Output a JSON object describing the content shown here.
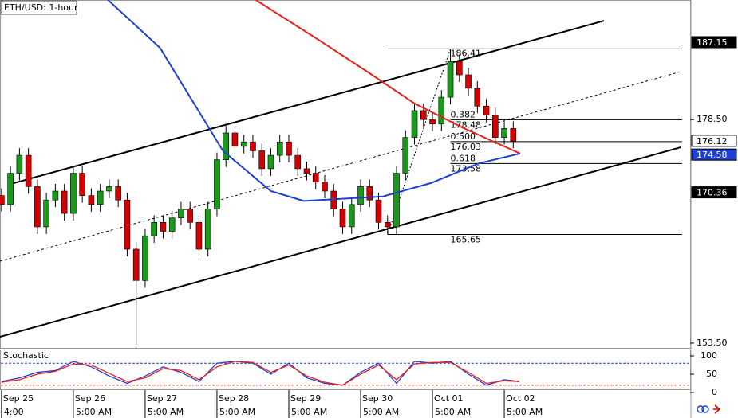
{
  "chart_data": {
    "type": "candlestick",
    "title": "ETH/USD: 1-hour",
    "xlim": [
      -0.5,
      230.1
    ],
    "ylim": [
      152.87,
      191.87
    ],
    "yticks": [
      {
        "value": 153.5,
        "label": "153.50"
      },
      {
        "value": 178.5,
        "label": "178.50"
      }
    ],
    "price_markers": [
      {
        "value": 187.15,
        "color": "#000000"
      },
      {
        "value": 176.12,
        "color": "#ffffff"
      },
      {
        "value": 174.58,
        "color": "#1f3fd0"
      },
      {
        "value": 170.36,
        "color": "#000000"
      }
    ],
    "xticks": [
      {
        "value": 0,
        "label": "Sep 25"
      },
      {
        "value": 24,
        "label": "Sep 26"
      },
      {
        "value": 48,
        "label": "Sep 27"
      },
      {
        "value": 72,
        "label": "Sep 28"
      },
      {
        "value": 96,
        "label": "Sep 29"
      },
      {
        "value": 120,
        "label": "Sep 30"
      },
      {
        "value": 144,
        "label": "Oct 01"
      },
      {
        "value": 168,
        "label": "Oct 02"
      }
    ],
    "xtick_times": [
      "4:00",
      "5:00 AM",
      "5:00 AM",
      "5:00 AM",
      "5:00 AM",
      "5:00 AM",
      "5:00 AM",
      "5:00 AM"
    ],
    "up_color": "#1a9a1a",
    "down_color": "#d40000",
    "x": [
      0,
      3,
      6,
      9,
      12,
      15,
      18,
      21,
      24,
      27,
      30,
      33,
      36,
      39,
      42,
      45,
      48,
      51,
      54,
      57,
      60,
      63,
      66,
      69,
      72,
      75,
      78,
      81,
      84,
      87,
      90,
      93,
      96,
      99,
      102,
      105,
      108,
      111,
      114,
      117,
      120,
      123,
      126,
      129,
      132,
      135,
      138,
      141,
      144,
      147,
      150,
      153,
      156,
      159,
      162,
      165,
      168,
      171
    ],
    "open": [
      170.0,
      169.0,
      172.5,
      174.5,
      171.0,
      166.5,
      169.5,
      170.5,
      168.0,
      172.5,
      170.0,
      169.0,
      170.5,
      171.0,
      169.5,
      164.0,
      160.5,
      165.5,
      167.0,
      166.0,
      167.5,
      168.5,
      167.0,
      164.0,
      168.5,
      174.0,
      177.0,
      175.5,
      176.0,
      175.0,
      173.0,
      174.5,
      176.0,
      174.5,
      173.0,
      172.5,
      171.5,
      170.5,
      168.5,
      166.5,
      169.0,
      171.0,
      169.5,
      167.0,
      166.5,
      172.5,
      176.5,
      179.5,
      178.5,
      178.0,
      181.0,
      185.0,
      183.5,
      182.0,
      180.0,
      179.0,
      176.5,
      177.5
    ],
    "high": [
      170.8,
      173.3,
      175.3,
      175.3,
      171.8,
      170.3,
      171.3,
      171.3,
      173.3,
      173.3,
      170.8,
      171.3,
      171.8,
      171.8,
      170.3,
      164.8,
      166.3,
      167.8,
      167.8,
      168.3,
      169.3,
      169.3,
      167.8,
      169.3,
      174.8,
      177.8,
      177.8,
      176.8,
      176.8,
      175.8,
      175.3,
      176.8,
      176.8,
      175.3,
      173.8,
      173.3,
      172.3,
      171.3,
      169.3,
      169.8,
      171.8,
      171.8,
      170.3,
      167.8,
      173.3,
      177.3,
      180.3,
      180.3,
      179.3,
      181.8,
      186.41,
      185.8,
      184.3,
      182.8,
      180.8,
      179.8,
      178.3,
      178.3
    ],
    "low": [
      168.2,
      168.2,
      171.7,
      170.2,
      165.7,
      165.7,
      168.7,
      167.2,
      167.2,
      169.2,
      168.2,
      168.2,
      169.7,
      168.7,
      163.2,
      153.3,
      159.7,
      164.7,
      165.2,
      165.2,
      166.7,
      166.2,
      163.2,
      163.2,
      167.7,
      173.2,
      174.7,
      174.7,
      174.2,
      172.2,
      172.2,
      173.7,
      173.7,
      172.2,
      171.7,
      170.7,
      169.7,
      167.7,
      165.7,
      165.7,
      168.2,
      168.7,
      166.2,
      165.65,
      165.7,
      171.7,
      175.7,
      177.7,
      177.2,
      177.2,
      180.2,
      182.7,
      181.2,
      179.2,
      178.2,
      175.7,
      175.7,
      175.3
    ],
    "close": [
      169.0,
      172.5,
      174.5,
      171.0,
      166.5,
      169.5,
      170.5,
      168.0,
      172.5,
      170.0,
      169.0,
      170.5,
      171.0,
      169.5,
      164.0,
      160.5,
      165.5,
      167.0,
      166.0,
      167.5,
      168.5,
      167.0,
      164.0,
      168.5,
      174.0,
      177.0,
      175.5,
      176.0,
      175.0,
      173.0,
      174.5,
      176.0,
      174.5,
      173.0,
      172.5,
      171.5,
      170.5,
      168.5,
      166.5,
      169.0,
      171.0,
      169.5,
      167.0,
      166.5,
      172.5,
      176.5,
      179.5,
      178.5,
      178.0,
      181.0,
      185.0,
      183.5,
      182.0,
      180.0,
      179.0,
      176.5,
      177.5,
      176.1
    ],
    "series": [
      {
        "color": "#e8201a",
        "x": [
          85,
          106,
          122,
          138,
          154,
          173.3
        ],
        "values": [
          191.87,
          187.4,
          183.9,
          180.3,
          177.6,
          174.7
        ]
      },
      {
        "color": "#1f3fd0",
        "x": [
          35.5,
          53,
          74,
          90,
          101,
          127.5,
          143.5,
          159.5,
          173.3
        ],
        "values": [
          191.9,
          186.5,
          175.0,
          170.5,
          169.4,
          169.9,
          171.4,
          173.6,
          174.7
        ]
      }
    ],
    "channel": [
      {
        "x": [
          2.1,
          201.3
        ],
        "values": [
          171.21,
          189.55
        ],
        "dashed": false
      },
      {
        "x": [
          -0.5,
          227
        ],
        "values": [
          162.66,
          183.86
        ],
        "dashed": true
      },
      {
        "x": [
          -0.5,
          227
        ],
        "values": [
          154.2,
          175.4
        ],
        "dashed": false
      }
    ],
    "fib": {
      "high": 186.41,
      "low": 165.65,
      "high_x": 150,
      "low_x": 129,
      "levels": [
        {
          "ratio": "0.382",
          "price": 178.48
        },
        {
          "ratio": "0.500",
          "price": 176.03
        },
        {
          "ratio": "0.618",
          "price": 173.58
        }
      ]
    },
    "stochastic": {
      "title": "Stochastic",
      "ylim": [
        0,
        100
      ],
      "yticks": [
        0,
        50,
        100
      ],
      "levels": [
        {
          "value": 80,
          "color": "#1f3fd0"
        },
        {
          "value": 20,
          "color": "#d40000"
        }
      ],
      "x": [
        0,
        6,
        12,
        18,
        24,
        30,
        36,
        42,
        48,
        54,
        60,
        66,
        72,
        78,
        84,
        90,
        96,
        102,
        108,
        114,
        120,
        126,
        132,
        138,
        144,
        150,
        156,
        162,
        168,
        173
      ],
      "series": [
        {
          "color": "#1f3fd0",
          "values": [
            30,
            40,
            55,
            60,
            85,
            70,
            45,
            25,
            45,
            70,
            55,
            30,
            80,
            85,
            80,
            50,
            80,
            40,
            25,
            20,
            55,
            80,
            25,
            85,
            80,
            85,
            50,
            20,
            35,
            30
          ]
        },
        {
          "color": "#e8201a",
          "values": [
            28,
            35,
            50,
            58,
            78,
            75,
            52,
            30,
            40,
            65,
            60,
            35,
            70,
            85,
            82,
            55,
            75,
            45,
            28,
            20,
            50,
            75,
            35,
            78,
            82,
            82,
            55,
            25,
            32,
            30
          ]
        }
      ]
    }
  }
}
